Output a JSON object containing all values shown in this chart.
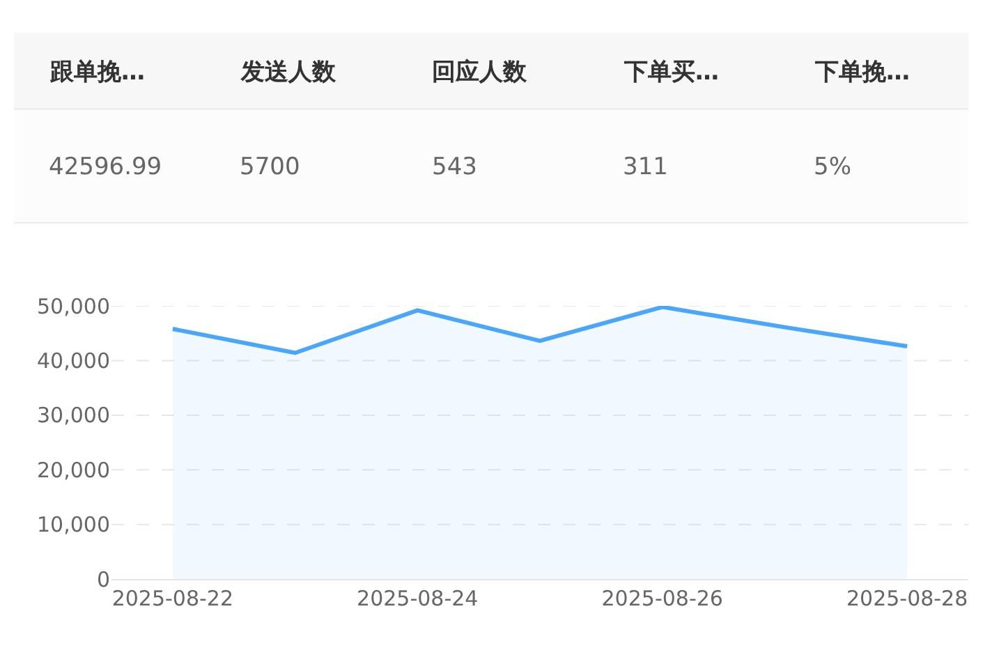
{
  "chart_data": [
    {
      "type": "other",
      "categories": [
        "跟单挽…",
        "发送人数",
        "回应人数",
        "下单买…",
        "下单挽…"
      ],
      "value_labels": [
        "42596.99",
        "5700",
        "543",
        "311",
        "5%"
      ]
    },
    {
      "type": "area",
      "x": [
        "2025-08-22",
        "2025-08-23",
        "2025-08-24",
        "2025-08-25",
        "2025-08-26",
        "2025-08-27",
        "2025-08-28"
      ],
      "series": [
        {
          "color": "#4aa6fb",
          "values": [
            45800,
            41400,
            49200,
            43600,
            49800,
            46100,
            42600
          ]
        }
      ],
      "xlim": [
        "2025-08-21T12:00",
        "2025-08-28T12:00"
      ],
      "xticks": [
        "2025-08-22",
        "2025-08-24",
        "2025-08-26",
        "2025-08-28"
      ],
      "ylim": [
        0,
        50000
      ],
      "yticks": [
        {
          "value": 0,
          "label": "0"
        },
        {
          "value": 10000,
          "label": "10,000"
        },
        {
          "value": 20000,
          "label": "20,000"
        },
        {
          "value": 30000,
          "label": "30,000"
        },
        {
          "value": 40000,
          "label": "40,000"
        },
        {
          "value": 50000,
          "label": "50,000"
        }
      ],
      "grid": "y",
      "marker": "none",
      "line_style": "solid"
    }
  ]
}
